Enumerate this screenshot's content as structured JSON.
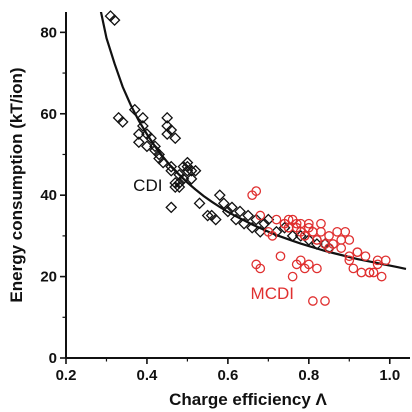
{
  "chart_data": {
    "type": "scatter",
    "title": "",
    "xlabel": "Charge efficiency Λ",
    "ylabel": "Energy consumption (kT/ion)",
    "xlim": [
      0.2,
      1.05
    ],
    "ylim": [
      0,
      85
    ],
    "x_ticks": [
      0.2,
      0.4,
      0.6,
      0.8,
      1.0
    ],
    "x_tick_labels": [
      "0.2",
      "0.4",
      "0.6",
      "0.8",
      "1.0"
    ],
    "y_ticks": [
      0,
      20,
      40,
      60,
      80
    ],
    "y_tick_labels": [
      "0",
      "20",
      "40",
      "60",
      "80"
    ],
    "grid": false,
    "annotations": [
      {
        "text": "CDI",
        "x": 0.45,
        "y": 41,
        "color": "#111111"
      },
      {
        "text": "MCDI",
        "x": 0.74,
        "y": 14.5,
        "color": "#e03030"
      }
    ],
    "series": [
      {
        "name": "CDI",
        "marker": "diamond",
        "color": "#111111",
        "x": [
          0.31,
          0.32,
          0.33,
          0.34,
          0.37,
          0.38,
          0.38,
          0.39,
          0.39,
          0.4,
          0.4,
          0.41,
          0.42,
          0.42,
          0.43,
          0.43,
          0.44,
          0.45,
          0.45,
          0.46,
          0.46,
          0.47,
          0.47,
          0.48,
          0.48,
          0.49,
          0.49,
          0.5,
          0.5,
          0.51,
          0.51,
          0.52,
          0.53,
          0.55,
          0.56,
          0.57,
          0.58,
          0.59,
          0.6,
          0.61,
          0.62,
          0.63,
          0.64,
          0.65,
          0.66,
          0.67,
          0.68,
          0.69,
          0.7,
          0.72,
          0.74,
          0.76,
          0.78,
          0.8,
          0.82,
          0.84,
          0.85,
          0.46,
          0.45,
          0.46,
          0.47,
          0.48,
          0.5
        ],
        "y": [
          84,
          83,
          59,
          58,
          61,
          53,
          55,
          59,
          57,
          55,
          52,
          54,
          52,
          51,
          50,
          49,
          48,
          59,
          57,
          47,
          46,
          54,
          43,
          42,
          45,
          44,
          47,
          48,
          47,
          46,
          44,
          46,
          38,
          35,
          35,
          34,
          40,
          38,
          36,
          37,
          34,
          36,
          33,
          35,
          32,
          34,
          31,
          33,
          34,
          31,
          32,
          30,
          30,
          29,
          28,
          28,
          27,
          37,
          55,
          56,
          42,
          43,
          46
        ],
        "style": {
          "fill": "none",
          "stroke": "#111111"
        }
      },
      {
        "name": "MCDI",
        "marker": "circle",
        "color": "#e03030",
        "x": [
          0.66,
          0.67,
          0.67,
          0.68,
          0.68,
          0.72,
          0.73,
          0.74,
          0.75,
          0.75,
          0.76,
          0.76,
          0.77,
          0.77,
          0.78,
          0.78,
          0.79,
          0.79,
          0.8,
          0.8,
          0.81,
          0.81,
          0.82,
          0.82,
          0.83,
          0.84,
          0.85,
          0.86,
          0.87,
          0.88,
          0.89,
          0.9,
          0.9,
          0.91,
          0.92,
          0.93,
          0.94,
          0.95,
          0.96,
          0.97,
          0.98,
          0.99,
          0.7,
          0.71,
          0.74,
          0.77,
          0.79,
          0.83,
          0.85,
          0.88,
          0.9,
          0.92,
          0.95,
          0.97,
          0.8,
          0.82,
          0.75,
          0.78,
          0.81,
          0.84
        ],
        "y": [
          40,
          41,
          23,
          22,
          35,
          34,
          25,
          33,
          34,
          32,
          20,
          34,
          33,
          23,
          31,
          24,
          30,
          22,
          33,
          23,
          31,
          14,
          29,
          22,
          33,
          14,
          30,
          28,
          31,
          27,
          31,
          29,
          24,
          22,
          26,
          21,
          25,
          21,
          21,
          24,
          20,
          24,
          31,
          30,
          33,
          32,
          30,
          31,
          27,
          29,
          25,
          26,
          21,
          23,
          32,
          29,
          32,
          33,
          31,
          28
        ],
        "style": {
          "fill": "none",
          "stroke": "#e03030"
        }
      }
    ],
    "fit_curve": {
      "color": "#111111",
      "x": [
        0.28,
        0.3,
        0.32,
        0.34,
        0.36,
        0.38,
        0.4,
        0.42,
        0.44,
        0.46,
        0.48,
        0.5,
        0.52,
        0.54,
        0.56,
        0.58,
        0.6,
        0.62,
        0.64,
        0.66,
        0.68,
        0.7,
        0.72,
        0.74,
        0.76,
        0.78,
        0.8,
        0.82,
        0.84,
        0.86,
        0.88,
        0.9,
        0.92,
        0.94,
        0.96,
        0.98,
        1.0,
        1.02,
        1.04
      ],
      "y": [
        88.0,
        78.6,
        72.3,
        66.6,
        62.1,
        58.3,
        55.0,
        52.0,
        49.4,
        47.0,
        45.0,
        43.1,
        41.4,
        39.8,
        38.4,
        37.1,
        35.9,
        34.8,
        33.8,
        32.8,
        31.9,
        31.0,
        30.2,
        29.5,
        28.8,
        28.1,
        27.5,
        26.9,
        26.3,
        25.8,
        25.3,
        24.8,
        24.3,
        23.9,
        23.5,
        23.1,
        22.7,
        22.3,
        21.9
      ]
    }
  }
}
